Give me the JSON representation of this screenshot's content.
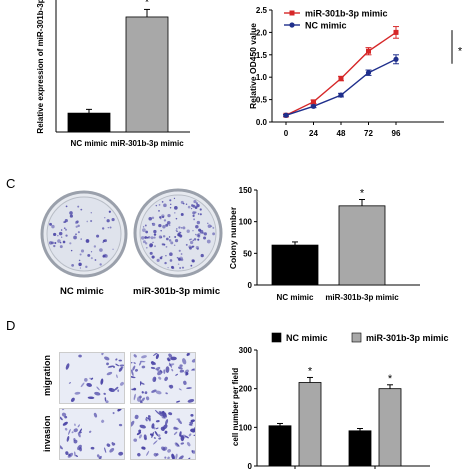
{
  "panel_letters": {
    "c": "C",
    "d": "D"
  },
  "panel_c": {
    "plate_labels": [
      "NC mimic",
      "miR-301b-3p mimic"
    ]
  },
  "panel_d": {
    "row_labels": [
      "migration",
      "invasion"
    ]
  },
  "colors": {
    "red": "#d62728",
    "blue": "#1f2f8c",
    "black": "#000000",
    "grey": "#a8a8a8",
    "stain": "#4a44a6"
  },
  "chart_data": [
    {
      "type": "bar",
      "panel": "A",
      "categories": [
        "NC mimic",
        "miR-301b-3p mimic"
      ],
      "values": [
        1.0,
        6.1
      ],
      "errors": [
        0.2,
        0.4
      ],
      "significance": [
        "",
        "*"
      ],
      "ylabel": "Relative expression of miR-301b-3p",
      "bar_colors": [
        "#000000",
        "#a8a8a8"
      ]
    },
    {
      "type": "line",
      "panel": "B",
      "x": [
        0,
        24,
        48,
        72,
        96
      ],
      "xticks": [
        "0",
        "24",
        "48",
        "72",
        "96"
      ],
      "ylabel": "Relative OD450 value",
      "ylim": [
        0,
        2.5
      ],
      "yticks": [
        "0.0",
        "0.5",
        "1.0",
        "1.5",
        "2.0",
        "2.5"
      ],
      "series": [
        {
          "name": "miR-301b-3p mimic",
          "values": [
            0.15,
            0.45,
            0.97,
            1.58,
            2.0
          ],
          "errors": [
            0.02,
            0.04,
            0.05,
            0.08,
            0.13
          ],
          "color": "#d62728",
          "marker": "square"
        },
        {
          "name": "NC mimic",
          "values": [
            0.15,
            0.35,
            0.6,
            1.1,
            1.4
          ],
          "errors": [
            0.02,
            0.03,
            0.04,
            0.06,
            0.1
          ],
          "color": "#1f2f8c",
          "marker": "circle"
        }
      ],
      "annotation": "*",
      "legend": "top-left"
    },
    {
      "type": "bar",
      "panel": "C",
      "categories": [
        "NC mimic",
        "miR-301b-3p mimic"
      ],
      "values": [
        63,
        125
      ],
      "errors": [
        5,
        10
      ],
      "significance": [
        "",
        "*"
      ],
      "ylabel": "Colony number",
      "ylim": [
        0,
        150
      ],
      "yticks": [
        "0",
        "50",
        "100",
        "150"
      ],
      "bar_colors": [
        "#000000",
        "#a8a8a8"
      ]
    },
    {
      "type": "bar",
      "panel": "D",
      "groups": 2,
      "series": [
        {
          "name": "NC mimic",
          "values": [
            104,
            91
          ],
          "errors": [
            6,
            6
          ],
          "color": "#000000"
        },
        {
          "name": "miR-301b-3p mimic",
          "values": [
            216,
            200
          ],
          "errors": [
            13,
            10
          ],
          "color": "#a8a8a8"
        }
      ],
      "significance": [
        "*",
        "*"
      ],
      "ylabel": "cell number per field",
      "ylim": [
        0,
        300
      ],
      "yticks": [
        "0",
        "100",
        "200",
        "300"
      ],
      "legend": "top"
    }
  ]
}
